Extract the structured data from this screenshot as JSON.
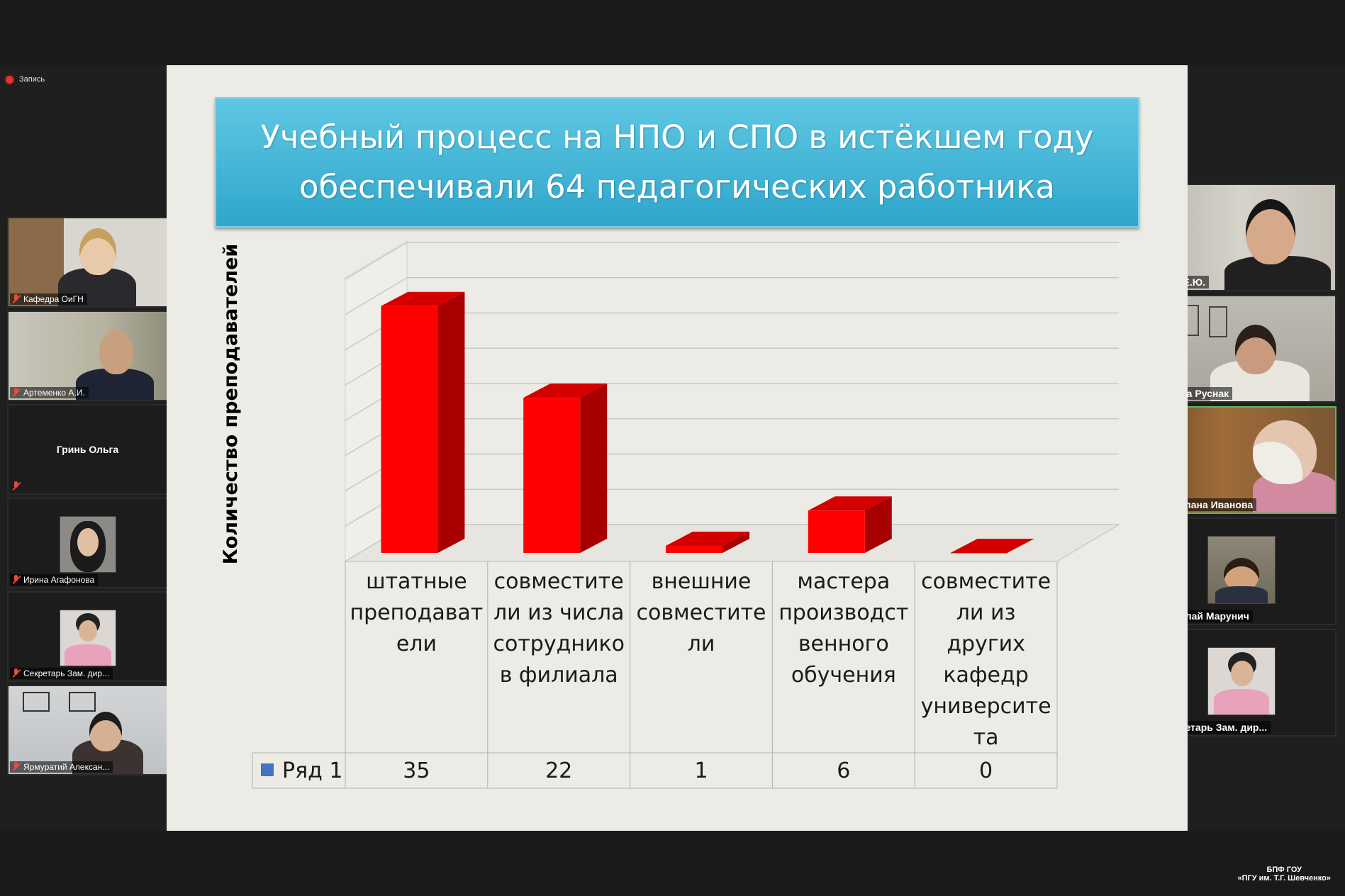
{
  "meeting": {
    "recording_label": "Запись",
    "branding": {
      "line1": "БПФ ГОУ",
      "line2": "«ПГУ им. Т.Г. Шевченко»"
    }
  },
  "left_participants": [
    {
      "name": "Кафедра ОиГН",
      "muted": true
    },
    {
      "name": "Артеменко А.И.",
      "muted": true
    },
    {
      "name": "Гринь Ольга",
      "muted": true,
      "video": false
    },
    {
      "name": "Ирина Агафонова",
      "muted": true
    },
    {
      "name": "Секретарь Зам. дир...",
      "muted": true
    },
    {
      "name": "Ярмуратий Алексан...",
      "muted": true
    }
  ],
  "right_participants": [
    {
      "name": "Ляхов Е.Ю.",
      "muted": false
    },
    {
      "name": "Ирина Руснак",
      "muted": true
    },
    {
      "name": "Светлана Иванова",
      "muted": true,
      "active": true
    },
    {
      "name": "Николай Марунич",
      "muted": true
    },
    {
      "name": "Секретарь Зам. дир...",
      "muted": true
    }
  ],
  "slide": {
    "title_line1": "Учебный процесс на НПО и СПО в истёкшем году",
    "title_line2": "обеспечивали 64 педагогических работника",
    "accent": "#3fb4d9"
  },
  "chart_data": {
    "type": "bar",
    "ylabel": "Количество преподавателей",
    "categories": [
      [
        "штатные",
        "преподават",
        "ели"
      ],
      [
        "совместите",
        "ли из числа",
        "сотруднико",
        "в филиала"
      ],
      [
        "внешние",
        "совместите",
        "ли"
      ],
      [
        "мастера",
        "производст",
        "венного",
        "обучения"
      ],
      [
        "совместите",
        "ли из",
        "других",
        "кафедр",
        "университе",
        "та"
      ]
    ],
    "series": [
      {
        "name": "Ряд 1",
        "values": [
          35,
          22,
          1,
          6,
          0
        ],
        "color": "#ff0000"
      }
    ],
    "ylim": [
      0,
      40
    ],
    "grid": true,
    "legend_color": "#4472c4"
  }
}
